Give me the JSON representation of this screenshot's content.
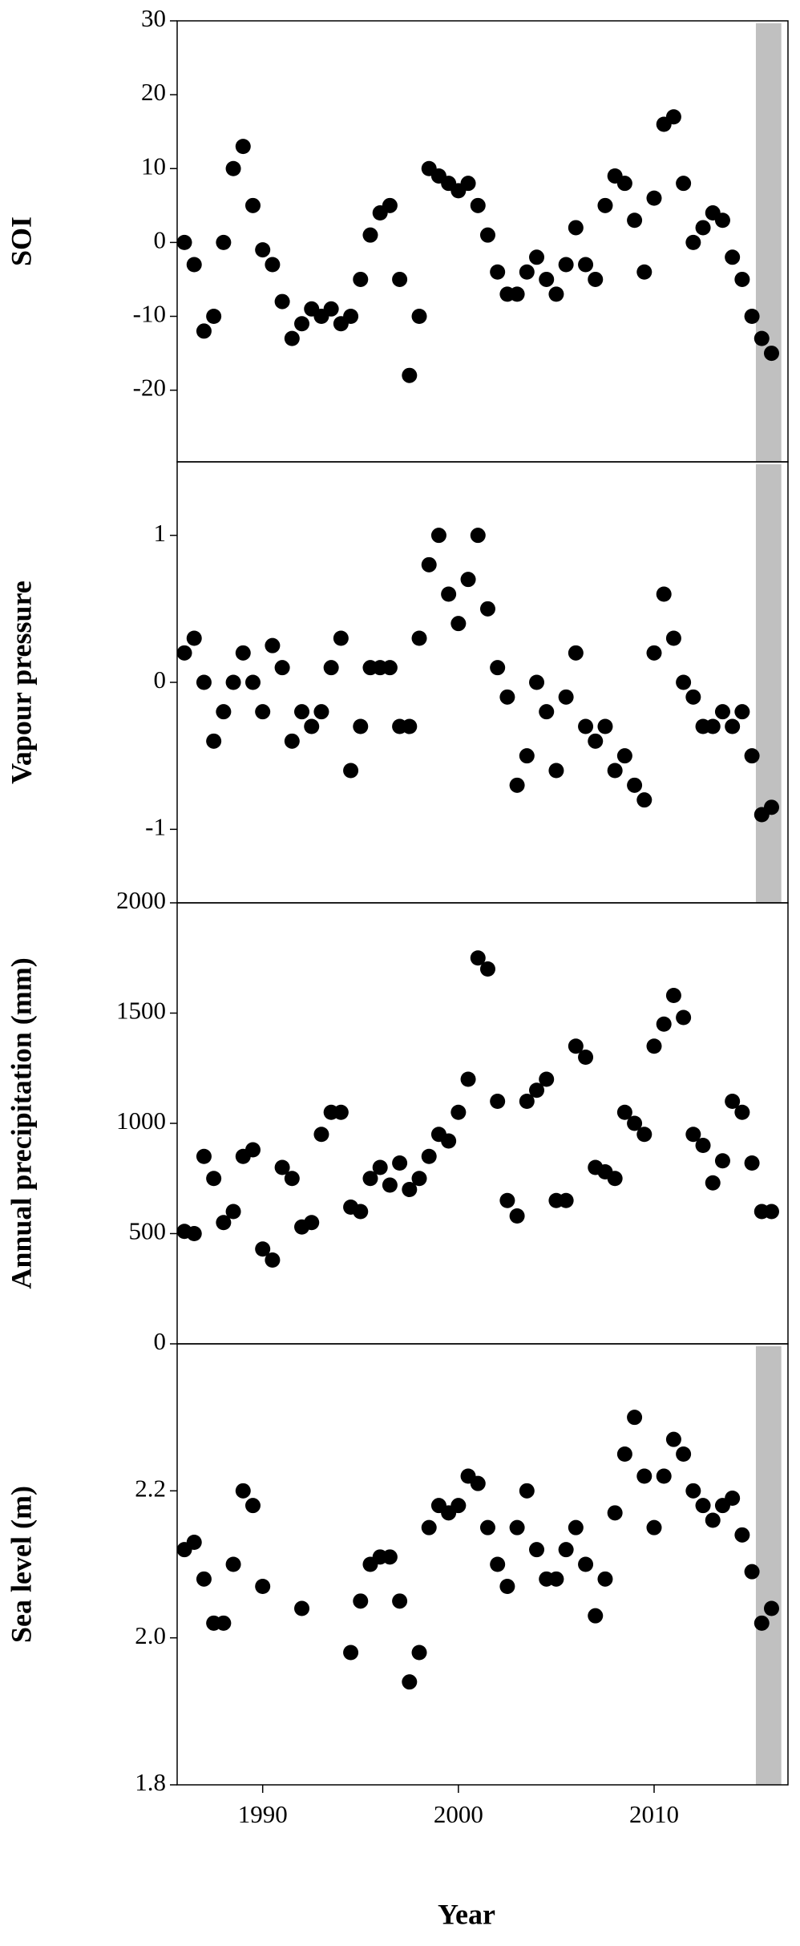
{
  "chart_data": [
    {
      "type": "scatter",
      "ylabel": "SOI",
      "color": "#000000",
      "xlim": [
        1985.63,
        2016.84
      ],
      "ylim": [
        -29.7,
        30
      ],
      "yticks": [
        -20,
        -10,
        0,
        10,
        20,
        30
      ],
      "shaded_range": [
        2015.2,
        2016.5
      ],
      "shade_color": "#c0c0c0",
      "x": [
        1986,
        1986.5,
        1987,
        1987.5,
        1988,
        1988.5,
        1989,
        1989.5,
        1990,
        1990.5,
        1991,
        1991.5,
        1992,
        1992.5,
        1993,
        1993.5,
        1994,
        1994.5,
        1995,
        1995.5,
        1996,
        1996.5,
        1997,
        1997.5,
        1998,
        1998.5,
        1999,
        1999.5,
        2000,
        2000.5,
        2001,
        2001.5,
        2002,
        2002.5,
        2003,
        2003.5,
        2004,
        2004.5,
        2005,
        2005.5,
        2006,
        2006.5,
        2007,
        2007.5,
        2008,
        2008.5,
        2009,
        2009.5,
        2010,
        2010.5,
        2011,
        2011.5,
        2012,
        2012.5,
        2013,
        2013.5,
        2014,
        2014.5,
        2015,
        2015.5,
        2016
      ],
      "values": [
        0,
        -3,
        -12,
        -10,
        0,
        10,
        13,
        5,
        -1,
        -3,
        -8,
        -13,
        -11,
        -9,
        -10,
        -9,
        -11,
        -10,
        -5,
        1,
        4,
        5,
        -5,
        -18,
        -10,
        10,
        9,
        8,
        7,
        8,
        5,
        1,
        -4,
        -7,
        -7,
        -4,
        -2,
        -5,
        -7,
        -3,
        2,
        -3,
        -5,
        5,
        9,
        8,
        3,
        -4,
        6,
        16,
        17,
        8,
        0,
        2,
        4,
        3,
        -2,
        -5,
        -10,
        -13,
        -15
      ]
    },
    {
      "type": "scatter",
      "ylabel": "Vapour pressure",
      "color": "#000000",
      "xlim": [
        1985.63,
        2016.84
      ],
      "ylim": [
        -1.5,
        1.5
      ],
      "yticks": [
        -1,
        0,
        1
      ],
      "shaded_range": [
        2015.2,
        2016.5
      ],
      "shade_color": "#c0c0c0",
      "x": [
        1986,
        1986.5,
        1987,
        1987.5,
        1988,
        1988.5,
        1989,
        1989.5,
        1990,
        1990.5,
        1991,
        1991.5,
        1992,
        1992.5,
        1993,
        1993.5,
        1994,
        1994.5,
        1995,
        1995.5,
        1996,
        1996.5,
        1997,
        1997.5,
        1998,
        1998.5,
        1999,
        1999.5,
        2000,
        2000.5,
        2001,
        2001.5,
        2002,
        2002.5,
        2003,
        2003.5,
        2004,
        2004.5,
        2005,
        2005.5,
        2006,
        2006.5,
        2007,
        2007.5,
        2008,
        2008.5,
        2009,
        2009.5,
        2010,
        2010.5,
        2011,
        2011.5,
        2012,
        2012.5,
        2013,
        2013.5,
        2014,
        2014.5,
        2015,
        2015.5,
        2016
      ],
      "values": [
        0.2,
        0.3,
        0,
        -0.4,
        -0.2,
        0,
        0.2,
        0,
        -0.2,
        0.25,
        0.1,
        -0.4,
        -0.2,
        -0.3,
        -0.2,
        0.1,
        0.3,
        -0.6,
        -0.3,
        0.1,
        0.1,
        0.1,
        -0.3,
        -0.3,
        0.3,
        0.8,
        1.0,
        0.6,
        0.4,
        0.7,
        1.0,
        0.5,
        0.1,
        -0.1,
        -0.7,
        -0.5,
        0,
        -0.2,
        -0.6,
        -0.1,
        0.2,
        -0.3,
        -0.4,
        -0.3,
        -0.6,
        -0.5,
        -0.7,
        -0.8,
        0.2,
        0.6,
        0.3,
        0,
        -0.1,
        -0.3,
        -0.3,
        -0.2,
        -0.3,
        -0.2,
        -0.5,
        -0.9,
        -0.85
      ]
    },
    {
      "type": "scatter",
      "ylabel": "Annual precipitation (mm)",
      "color": "#000000",
      "xlim": [
        1985.63,
        2016.84
      ],
      "ylim": [
        0,
        2000
      ],
      "yticks": [
        0,
        500,
        1000,
        1500,
        2000
      ],
      "x": [
        1986,
        1986.5,
        1987,
        1987.5,
        1988,
        1988.5,
        1989,
        1989.5,
        1990,
        1990.5,
        1991,
        1991.5,
        1992,
        1992.5,
        1993,
        1993.5,
        1994,
        1994.5,
        1995,
        1995.5,
        1996,
        1996.5,
        1997,
        1997.5,
        1998,
        1998.5,
        1999,
        1999.5,
        2000,
        2000.5,
        2001,
        2001.5,
        2002,
        2002.5,
        2003,
        2003.5,
        2004,
        2004.5,
        2005,
        2005.5,
        2006,
        2006.5,
        2007,
        2007.5,
        2008,
        2008.5,
        2009,
        2009.5,
        2010,
        2010.5,
        2011,
        2011.5,
        2012,
        2012.5,
        2013,
        2013.5,
        2014,
        2014.5,
        2015,
        2015.5,
        2016
      ],
      "values": [
        510,
        500,
        850,
        750,
        550,
        600,
        850,
        880,
        430,
        380,
        800,
        750,
        530,
        550,
        950,
        1050,
        1050,
        620,
        600,
        750,
        800,
        720,
        820,
        700,
        750,
        850,
        950,
        920,
        1050,
        1200,
        1750,
        1700,
        1100,
        650,
        580,
        1100,
        1150,
        1200,
        650,
        650,
        1350,
        1300,
        800,
        780,
        750,
        1050,
        1000,
        950,
        1350,
        1450,
        1580,
        1480,
        950,
        900,
        730,
        830,
        1100,
        1050,
        820,
        600,
        600
      ]
    },
    {
      "type": "scatter",
      "ylabel": "Sea level (m)",
      "xlabel": "Year",
      "color": "#000000",
      "xlim": [
        1985.63,
        2016.84
      ],
      "ylim": [
        1.8,
        2.4
      ],
      "yticks": [
        {
          "value": 1.8,
          "label": "1.8"
        },
        {
          "value": 2.0,
          "label": "2.0"
        },
        {
          "value": 2.2,
          "label": "2.2"
        }
      ],
      "xticks": [
        1990,
        2000,
        2010
      ],
      "shaded_range": [
        2015.2,
        2016.5
      ],
      "shade_color": "#c0c0c0",
      "x": [
        1986,
        1986.5,
        1987,
        1987.5,
        1988,
        1988.5,
        1989,
        1989.5,
        1990,
        1990.5,
        1991,
        1991.5,
        1992,
        1992.5,
        1993,
        1993.5,
        1994,
        1994.5,
        1995,
        1995.5,
        1996,
        1996.5,
        1997,
        1997.5,
        1998,
        1998.5,
        1999,
        1999.5,
        2000,
        2000.5,
        2001,
        2001.5,
        2002,
        2002.5,
        2003,
        2003.5,
        2004,
        2004.5,
        2005,
        2005.5,
        2006,
        2006.5,
        2007,
        2007.5,
        2008,
        2008.5,
        2009,
        2009.5,
        2010,
        2010.5,
        2011,
        2011.5,
        2012,
        2012.5,
        2013,
        2013.5,
        2014,
        2014.5,
        2015,
        2015.5,
        2016
      ],
      "values": [
        2.12,
        2.13,
        2.08,
        2.02,
        2.02,
        2.1,
        2.2,
        2.18,
        2.07,
        null,
        null,
        null,
        2.04,
        null,
        null,
        null,
        null,
        1.98,
        2.05,
        2.1,
        2.11,
        2.11,
        2.05,
        1.94,
        1.98,
        2.15,
        2.18,
        2.17,
        2.18,
        2.22,
        2.21,
        2.15,
        2.1,
        2.07,
        2.15,
        2.2,
        2.12,
        2.08,
        2.08,
        2.12,
        2.15,
        2.1,
        2.03,
        2.08,
        2.17,
        2.25,
        2.3,
        2.22,
        2.15,
        2.22,
        2.27,
        2.25,
        2.2,
        2.18,
        2.16,
        2.18,
        2.19,
        2.14,
        2.09,
        2.02,
        2.04
      ]
    }
  ]
}
